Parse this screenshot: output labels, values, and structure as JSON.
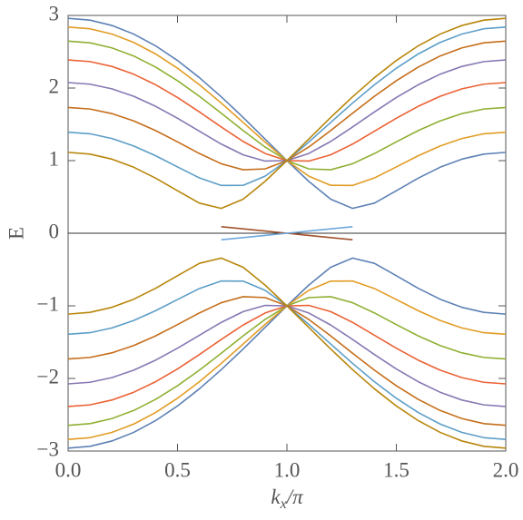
{
  "chart_data": {
    "type": "line",
    "y_label": "E",
    "x_label": {
      "base": "k",
      "subscript": "x",
      "rest": "/π"
    },
    "x": [
      0,
      0.1,
      0.2,
      0.3,
      0.4,
      0.5,
      0.6,
      0.7,
      0.8,
      0.9,
      1,
      1.1,
      1.2,
      1.3,
      1.4,
      1.5,
      1.6,
      1.7,
      1.8,
      1.9,
      2
    ],
    "xlim": [
      0,
      2
    ],
    "ylim": [
      -3,
      3
    ],
    "xticks": [
      {
        "value": 0,
        "label": "0.0"
      },
      {
        "value": 0.5,
        "label": "0.5"
      },
      {
        "value": 1,
        "label": "1.0"
      },
      {
        "value": 1.5,
        "label": "1.5"
      },
      {
        "value": 2,
        "label": "2.0"
      }
    ],
    "yticks": [
      {
        "value": -3,
        "label": "−3"
      },
      {
        "value": -2,
        "label": "−2"
      },
      {
        "value": -1,
        "label": "−1"
      },
      0,
      1,
      2,
      3
    ],
    "zero_line": true,
    "series": [
      {
        "color": "#5E81B5",
        "values": [
          2.96,
          2.935,
          2.862,
          2.743,
          2.581,
          2.379,
          2.143,
          1.879,
          1.595,
          1.298,
          1,
          0.714,
          0.469,
          0.342,
          0.415,
          0.585,
          0.759,
          0.909,
          1.021,
          1.09,
          1.114
        ]
      },
      {
        "color": "#E19C24",
        "values": [
          2.84,
          2.816,
          2.744,
          2.628,
          2.469,
          2.273,
          2.045,
          1.793,
          1.526,
          1.256,
          1,
          0.786,
          0.66,
          0.658,
          0.762,
          0.913,
          1.067,
          1.202,
          1.305,
          1.37,
          1.391
        ]
      },
      {
        "color": "#8FB032",
        "values": [
          2.646,
          2.623,
          2.553,
          2.441,
          2.288,
          2.101,
          1.886,
          1.653,
          1.414,
          1.188,
          1,
          0.886,
          0.874,
          0.957,
          1.098,
          1.259,
          1.414,
          1.547,
          1.648,
          1.711,
          1.732
        ]
      },
      {
        "color": "#EB6235",
        "values": [
          2.387,
          2.364,
          2.298,
          2.19,
          2.045,
          1.869,
          1.671,
          1.463,
          1.264,
          1.099,
          1,
          0.994,
          1.08,
          1.228,
          1.405,
          1.584,
          1.748,
          1.886,
          1.989,
          2.053,
          2.075
        ]
      },
      {
        "color": "#8778B3",
        "values": [
          2.075,
          2.053,
          1.989,
          1.886,
          1.748,
          1.584,
          1.405,
          1.228,
          1.08,
          0.994,
          1,
          1.099,
          1.264,
          1.463,
          1.671,
          1.869,
          2.045,
          2.19,
          2.298,
          2.364,
          2.387
        ]
      },
      {
        "color": "#C56E1A",
        "values": [
          1.732,
          1.711,
          1.648,
          1.547,
          1.414,
          1.259,
          1.098,
          0.957,
          0.874,
          0.886,
          1,
          1.188,
          1.414,
          1.653,
          1.886,
          2.101,
          2.288,
          2.441,
          2.553,
          2.623,
          2.646
        ]
      },
      {
        "color": "#5D9EC7",
        "values": [
          1.391,
          1.37,
          1.305,
          1.202,
          1.067,
          0.913,
          0.762,
          0.658,
          0.66,
          0.786,
          1,
          1.256,
          1.526,
          1.793,
          2.045,
          2.273,
          2.469,
          2.628,
          2.744,
          2.816,
          2.84
        ]
      },
      {
        "color": "#B8860B",
        "values": [
          1.114,
          1.09,
          1.021,
          0.909,
          0.759,
          0.585,
          0.415,
          0.342,
          0.469,
          0.714,
          1,
          1.298,
          1.595,
          1.879,
          2.143,
          2.379,
          2.581,
          2.743,
          2.862,
          2.935,
          2.96
        ]
      },
      {
        "color": "#A0522D",
        "values": [
          null,
          null,
          null,
          null,
          null,
          null,
          null,
          0.09,
          0.06,
          0.03,
          0,
          -0.03,
          -0.06,
          -0.09,
          null,
          null,
          null,
          null,
          null,
          null,
          null
        ]
      },
      {
        "color": "#6FA8DC",
        "values": [
          null,
          null,
          null,
          null,
          null,
          null,
          null,
          -0.09,
          -0.06,
          -0.03,
          0,
          0.03,
          0.06,
          0.09,
          null,
          null,
          null,
          null,
          null,
          null,
          null
        ]
      },
      {
        "color": "#5E81B5",
        "values": [
          -2.96,
          -2.935,
          -2.862,
          -2.743,
          -2.581,
          -2.379,
          -2.143,
          -1.879,
          -1.595,
          -1.298,
          -1,
          -0.714,
          -0.469,
          -0.342,
          -0.415,
          -0.585,
          -0.759,
          -0.909,
          -1.021,
          -1.09,
          -1.114
        ]
      },
      {
        "color": "#E19C24",
        "values": [
          -2.84,
          -2.816,
          -2.744,
          -2.628,
          -2.469,
          -2.273,
          -2.045,
          -1.793,
          -1.526,
          -1.256,
          -1,
          -0.786,
          -0.66,
          -0.658,
          -0.762,
          -0.913,
          -1.067,
          -1.202,
          -1.305,
          -1.37,
          -1.391
        ]
      },
      {
        "color": "#8FB032",
        "values": [
          -2.646,
          -2.623,
          -2.553,
          -2.441,
          -2.288,
          -2.101,
          -1.886,
          -1.653,
          -1.414,
          -1.188,
          -1,
          -0.886,
          -0.874,
          -0.957,
          -1.098,
          -1.259,
          -1.414,
          -1.547,
          -1.648,
          -1.711,
          -1.732
        ]
      },
      {
        "color": "#EB6235",
        "values": [
          -2.387,
          -2.364,
          -2.298,
          -2.19,
          -2.045,
          -1.869,
          -1.671,
          -1.463,
          -1.264,
          -1.099,
          -1,
          -0.994,
          -1.08,
          -1.228,
          -1.405,
          -1.584,
          -1.748,
          -1.886,
          -1.989,
          -2.053,
          -2.075
        ]
      },
      {
        "color": "#8778B3",
        "values": [
          -2.075,
          -2.053,
          -1.989,
          -1.886,
          -1.748,
          -1.584,
          -1.405,
          -1.228,
          -1.08,
          -0.994,
          -1,
          -1.099,
          -1.264,
          -1.463,
          -1.671,
          -1.869,
          -2.045,
          -2.19,
          -2.298,
          -2.364,
          -2.387
        ]
      },
      {
        "color": "#C56E1A",
        "values": [
          -1.732,
          -1.711,
          -1.648,
          -1.547,
          -1.414,
          -1.259,
          -1.098,
          -0.957,
          -0.874,
          -0.886,
          -1,
          -1.188,
          -1.414,
          -1.653,
          -1.886,
          -2.101,
          -2.288,
          -2.441,
          -2.553,
          -2.623,
          -2.646
        ]
      },
      {
        "color": "#5D9EC7",
        "values": [
          -1.391,
          -1.37,
          -1.305,
          -1.202,
          -1.067,
          -0.913,
          -0.762,
          -0.658,
          -0.66,
          -0.786,
          -1,
          -1.256,
          -1.526,
          -1.793,
          -2.045,
          -2.273,
          -2.469,
          -2.628,
          -2.744,
          -2.816,
          -2.84
        ]
      },
      {
        "color": "#B8860B",
        "values": [
          -1.114,
          -1.09,
          -1.021,
          -0.909,
          -0.759,
          -0.585,
          -0.415,
          -0.342,
          -0.469,
          -0.714,
          -1,
          -1.298,
          -1.595,
          -1.879,
          -2.143,
          -2.379,
          -2.581,
          -2.743,
          -2.862,
          -2.935,
          -2.96
        ]
      }
    ]
  }
}
